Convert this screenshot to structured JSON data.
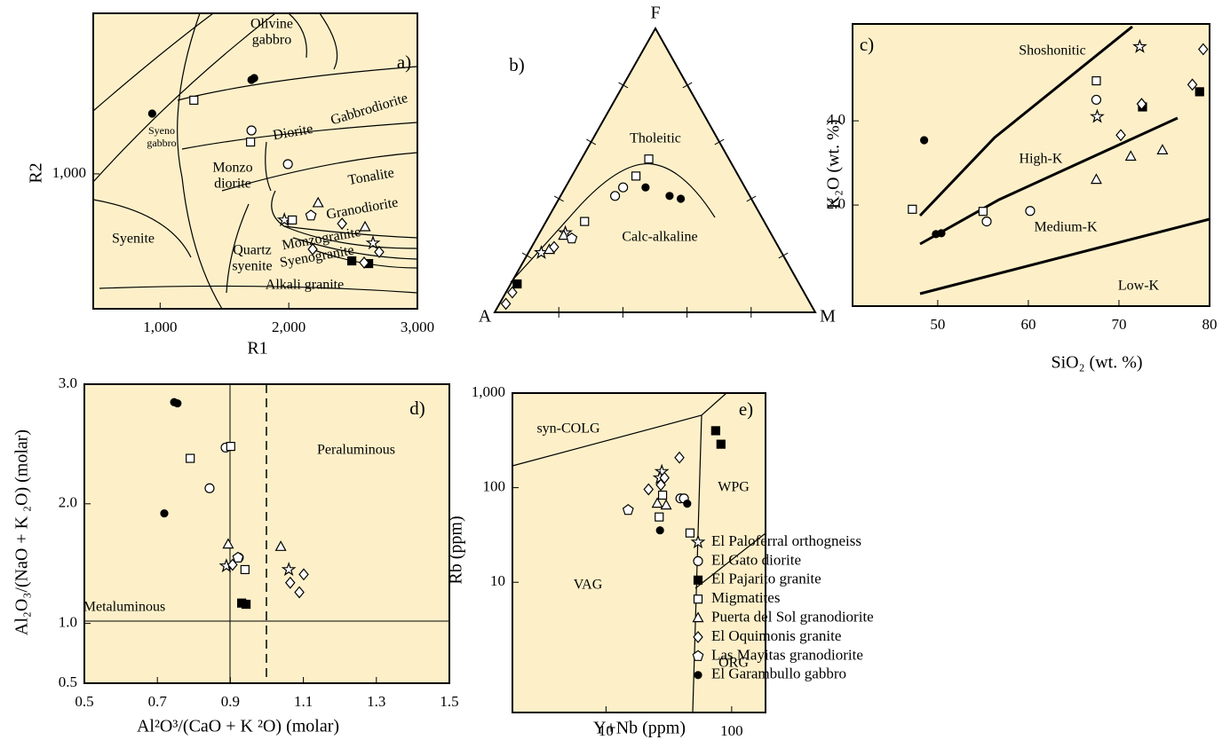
{
  "legend": {
    "entries": [
      {
        "name": "El Paloferral orthogneiss",
        "marker": "star"
      },
      {
        "name": "El Gato diorite",
        "marker": "circle"
      },
      {
        "name": "El Pajarito granite",
        "marker": "filled-square"
      },
      {
        "name": "Migmatites",
        "marker": "square"
      },
      {
        "name": "Puerta del Sol granodiorite",
        "marker": "triangle"
      },
      {
        "name": "El Oquimonis granite",
        "marker": "diamond"
      },
      {
        "name": "Las Mayitas granodiorite",
        "marker": "pentagon"
      },
      {
        "name": "El Garambullo gabbro",
        "marker": "filled-circle"
      }
    ]
  },
  "chart_data": [
    {
      "type": "scatter",
      "label": "a)",
      "xlabel": "R1",
      "ylabel": "R2",
      "annotations": [
        "Olivine",
        "gabbro",
        "Gabbrodiorite",
        "Syeno",
        "gabbro",
        "Diorite",
        "Monzo",
        "diorite",
        "Tonalite",
        "Granodiorite",
        "Syenite",
        "Quartz",
        "syenite",
        "Monzogranite",
        "Syenogranite",
        "Alkali granite"
      ],
      "xlim": [
        480,
        3000
      ],
      "ylim": [
        0,
        2190
      ],
      "xticks": [
        {
          "value": 1000,
          "label": "1,000"
        },
        {
          "value": 2000,
          "label": "2,000"
        },
        {
          "value": 3000,
          "label": "3,000"
        }
      ],
      "yticks": [
        {
          "value": 1000,
          "label": "1,000"
        }
      ],
      "series": [
        {
          "marker": "star",
          "x": [
            1966,
            2655
          ],
          "y": [
            658,
            487
          ]
        },
        {
          "marker": "circle",
          "x": [
            1710,
            1993
          ],
          "y": [
            1322,
            1072
          ]
        },
        {
          "marker": "filled-square",
          "x": [
            2490,
            2621
          ],
          "y": [
            355,
            335
          ]
        },
        {
          "marker": "square",
          "x": [
            1262,
            1703,
            2028
          ],
          "y": [
            1546,
            1236,
            658
          ]
        },
        {
          "marker": "triangle",
          "x": [
            2228,
            2593
          ],
          "y": [
            783,
            605
          ]
        },
        {
          "marker": "diamond",
          "x": [
            2414,
            2186,
            2703,
            2586
          ],
          "y": [
            631,
            441,
            421,
            342
          ]
        },
        {
          "marker": "pentagon",
          "x": [
            2172
          ],
          "y": [
            691
          ]
        },
        {
          "marker": "filled-circle",
          "x": [
            1731,
            1710,
            938
          ],
          "y": [
            1710,
            1697,
            1447
          ]
        }
      ]
    },
    {
      "type": "ternary",
      "label": "b)",
      "corners": [
        "A",
        "F",
        "M"
      ],
      "annotations": [
        "Tholeitic",
        "Calc-alkaline"
      ],
      "ticks": [
        20,
        40,
        60,
        80
      ],
      "series": [
        {
          "marker": "star",
          "a": [
            64,
            75
          ],
          "f": [
            28,
            21
          ],
          "m": [
            8,
            4
          ]
        },
        {
          "marker": "circle",
          "a": [
            42,
            38
          ],
          "f": [
            41,
            44
          ],
          "m": [
            17,
            18
          ]
        },
        {
          "marker": "filled-square",
          "a": [
            88
          ],
          "f": [
            10
          ],
          "m": [
            2
          ]
        },
        {
          "marker": "square",
          "a": [
            25,
            32,
            56
          ],
          "f": [
            54,
            48,
            32
          ],
          "m": [
            21,
            20,
            12
          ]
        },
        {
          "marker": "triangle",
          "a": [
            65,
            72
          ],
          "f": [
            27,
            22
          ],
          "m": [
            8,
            6
          ]
        },
        {
          "marker": "diamond",
          "a": [
            70,
            95,
            91
          ],
          "f": [
            23,
            3,
            7
          ],
          "m": [
            7,
            2,
            2
          ]
        },
        {
          "marker": "pentagon",
          "a": [
            63
          ],
          "f": [
            26
          ],
          "m": [
            11
          ]
        },
        {
          "marker": "filled-circle",
          "a": [
            31,
            25,
            22
          ],
          "f": [
            44,
            41,
            40
          ],
          "m": [
            25,
            34,
            38
          ]
        }
      ]
    },
    {
      "type": "scatter",
      "label": "c)",
      "xlabel": "SiO₂ (wt. %)",
      "ylabel": "K₂O (wt. %)",
      "annotations": [
        "Shoshonitic",
        "High-K",
        "Medium-K",
        "Low-K"
      ],
      "xlim": [
        40.6,
        80
      ],
      "ylim": [
        -0.4,
        6.3
      ],
      "xticks": [
        50,
        60,
        70,
        80
      ],
      "yticks": [
        {
          "value": 2,
          "label": "2.0"
        },
        {
          "value": 4,
          "label": "4.0"
        }
      ],
      "series": [
        {
          "marker": "star",
          "x": [
            72.3,
            67.6
          ],
          "y": [
            5.76,
            4.1
          ]
        },
        {
          "marker": "circle",
          "x": [
            55.4,
            60.2,
            67.5
          ],
          "y": [
            1.61,
            1.86,
            4.5
          ]
        },
        {
          "marker": "filled-square",
          "x": [
            72.6,
            78.9
          ],
          "y": [
            4.33,
            4.69
          ]
        },
        {
          "marker": "square",
          "x": [
            47.2,
            55.0,
            67.5
          ],
          "y": [
            1.9,
            1.85,
            4.95
          ]
        },
        {
          "marker": "triangle",
          "x": [
            67.5,
            71.3,
            74.8
          ],
          "y": [
            2.6,
            3.15,
            3.3
          ]
        },
        {
          "marker": "diamond",
          "x": [
            79.3,
            78.1,
            72.5,
            70.2
          ],
          "y": [
            5.7,
            4.86,
            4.4,
            3.66
          ]
        },
        {
          "marker": "filled-circle",
          "x": [
            48.5,
            49.8,
            50.4
          ],
          "y": [
            3.54,
            1.31,
            1.33
          ]
        }
      ]
    },
    {
      "type": "scatter",
      "label": "d)",
      "xlabel": "Al²O³/(CaO + K ²O) (molar)",
      "ylabel": "Al₂O₃/(NaO + K ₂O) (molar)",
      "annotations": [
        "Peraluminous",
        "Metaluminous"
      ],
      "xlim": [
        0.5,
        1.5
      ],
      "ylim": [
        0.5,
        3.0
      ],
      "xticks": [
        0.5,
        0.7,
        0.9,
        1.1,
        1.3,
        1.5
      ],
      "yticks": [
        0.5,
        {
          "value": 1,
          "label": "1.0"
        },
        {
          "value": 2,
          "label": "2.0"
        },
        {
          "value": 3,
          "label": "3.0"
        }
      ],
      "series": [
        {
          "marker": "star",
          "x": [
            0.889,
            1.06
          ],
          "y": [
            1.48,
            1.45
          ]
        },
        {
          "marker": "circle",
          "x": [
            0.887,
            0.843,
            0.923
          ],
          "y": [
            2.47,
            2.13,
            1.55
          ]
        },
        {
          "marker": "filled-square",
          "x": [
            0.931,
            0.943
          ],
          "y": [
            1.17,
            1.16
          ]
        },
        {
          "marker": "square",
          "x": [
            0.79,
            0.901,
            0.94
          ],
          "y": [
            2.38,
            2.48,
            1.45
          ]
        },
        {
          "marker": "triangle",
          "x": [
            0.894,
            1.038
          ],
          "y": [
            1.66,
            1.64
          ]
        },
        {
          "marker": "diamond",
          "x": [
            0.906,
            1.101,
            1.064,
            1.089
          ],
          "y": [
            1.49,
            1.41,
            1.34,
            1.26
          ]
        },
        {
          "marker": "pentagon",
          "x": [
            0.921
          ],
          "y": [
            1.55
          ]
        },
        {
          "marker": "filled-circle",
          "x": [
            0.746,
            0.755,
            0.719
          ],
          "y": [
            2.85,
            2.84,
            1.92
          ]
        }
      ]
    },
    {
      "type": "scatter",
      "label": "e)",
      "xlabel": "Y+Nb (ppm)",
      "ylabel": "Rb (ppm)",
      "log_scale": true,
      "annotations": [
        "syn-COLG",
        "WPG",
        "VAG",
        "ORG"
      ],
      "xlim": [
        1.8,
        186
      ],
      "ylim": [
        0.42,
        1000
      ],
      "xticks": [
        10,
        100
      ],
      "yticks": [
        10,
        100,
        {
          "value": 1000,
          "label": "1,000"
        }
      ],
      "series": [
        {
          "marker": "star",
          "x": [
            27.8,
            26.9
          ],
          "y": [
            148,
            127
          ]
        },
        {
          "marker": "circle",
          "x": [
            39.1,
            41.7
          ],
          "y": [
            77,
            77
          ]
        },
        {
          "marker": "filled-square",
          "x": [
            74.6,
            82.2
          ],
          "y": [
            400,
            288
          ]
        },
        {
          "marker": "square",
          "x": [
            26.5,
            28.2,
            46.6
          ],
          "y": [
            49,
            83.4,
            33.2
          ]
        },
        {
          "marker": "triangle",
          "x": [
            25.6,
            30.1
          ],
          "y": [
            67.8,
            64.9
          ]
        },
        {
          "marker": "diamond",
          "x": [
            38.4,
            21.8,
            29.2,
            27.3
          ],
          "y": [
            208,
            96,
            127,
            107
          ]
        },
        {
          "marker": "pentagon",
          "x": [
            15
          ],
          "y": [
            58
          ]
        },
        {
          "marker": "filled-circle",
          "x": [
            26.9,
            44.3
          ],
          "y": [
            35.4,
            67.8
          ]
        }
      ]
    }
  ]
}
